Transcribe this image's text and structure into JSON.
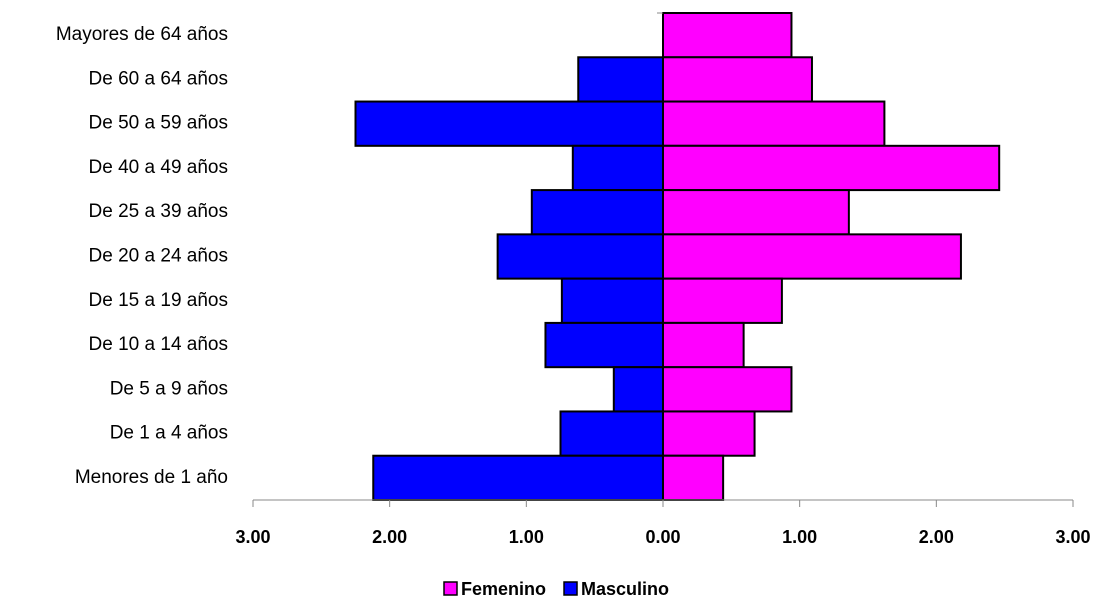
{
  "chart_data": {
    "type": "pyramid",
    "categories": [
      "Mayores de 64 años",
      "De 60 a 64 años",
      "De 50 a 59 años",
      "De 40 a 49 años",
      "De 25 a 39 años",
      "De 20 a 24 años",
      "De 15 a 19 años",
      "De 10 a 14 años",
      "De 5 a 9 años",
      "De 1 a 4 años",
      "Menores de 1 año"
    ],
    "series": [
      {
        "name": "Femenino",
        "color": "#ff00ff",
        "values": [
          0.94,
          1.09,
          1.62,
          2.46,
          1.36,
          2.18,
          0.87,
          0.59,
          0.94,
          0.67,
          0.44
        ]
      },
      {
        "name": "Masculino",
        "color": "#0000ff",
        "values": [
          0,
          -0.62,
          -2.25,
          -0.66,
          -0.96,
          -1.21,
          -0.74,
          -0.86,
          -0.36,
          -0.75,
          -2.12
        ]
      }
    ],
    "xlim": [
      -3,
      3
    ],
    "xticks": [
      {
        "value": -3,
        "label": "3.00"
      },
      {
        "value": -2,
        "label": "2.00"
      },
      {
        "value": -1,
        "label": "1.00"
      },
      {
        "value": 0,
        "label": "0.00"
      },
      {
        "value": 1,
        "label": "1.00"
      },
      {
        "value": 2,
        "label": "2.00"
      },
      {
        "value": 3,
        "label": "3.00"
      }
    ],
    "legend": "bottom"
  }
}
